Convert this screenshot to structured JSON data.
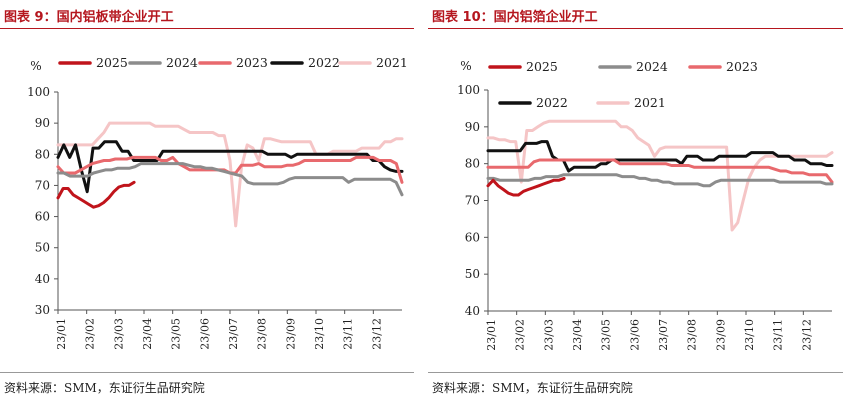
{
  "colors": {
    "title_red": "#b5161e",
    "2025": "#c0141b",
    "2024": "#8c8c8c",
    "2023": "#e8696d",
    "2022": "#111111",
    "2021": "#f5c5c6"
  },
  "panels": [
    {
      "title": "图表 9：国内铝板带企业开工",
      "source": "资料来源：SMM，东证衍生品研究院"
    },
    {
      "title": "图表 10：国内铝箔企业开工",
      "source": "资料来源：SMM，东证衍生品研究院"
    }
  ],
  "chart_data": [
    {
      "type": "line",
      "title": "国内铝板带企业开工",
      "ylabel": "%",
      "ylim": [
        30,
        100
      ],
      "yticks": [
        30,
        40,
        50,
        60,
        70,
        80,
        90,
        100
      ],
      "xlim": [
        0,
        52
      ],
      "x_ticks": [
        "23/01",
        "23/02",
        "23/03",
        "23/04",
        "23/05",
        "23/06",
        "23/07",
        "23/08",
        "23/09",
        "23/10",
        "23/11",
        "23/12"
      ],
      "legend": "top, single row",
      "series": [
        {
          "name": "2025",
          "color": "#c0141b",
          "values": [
            66,
            69,
            69,
            67,
            66,
            65,
            64,
            63,
            63.5,
            64.5,
            66,
            68,
            69.5,
            70,
            70,
            71
          ]
        },
        {
          "name": "2024",
          "color": "#8c8c8c",
          "values": [
            74,
            74,
            73,
            73,
            73,
            73,
            74,
            74.5,
            75,
            75,
            75.5,
            75.5,
            75.5,
            76,
            77,
            77,
            77,
            77,
            77,
            77,
            77,
            77,
            76.5,
            76,
            76,
            75.5,
            75.5,
            75,
            74.5,
            74,
            73.5,
            73,
            71,
            70.5,
            70.5,
            70.5,
            70.5,
            70.5,
            71,
            72,
            72.5,
            72.5,
            72.5,
            72.5,
            72.5,
            72.5,
            72.5,
            72.5,
            72.5,
            71,
            72,
            72,
            72,
            72,
            72,
            72,
            72,
            71,
            67
          ]
        },
        {
          "name": "2023",
          "color": "#e8696d",
          "values": [
            76,
            74,
            74,
            74,
            75,
            76,
            77,
            77.5,
            78,
            78,
            78.5,
            78.5,
            78.5,
            79,
            79,
            79,
            79,
            79,
            78,
            78,
            79,
            77,
            76,
            75,
            75,
            75,
            75,
            75,
            75,
            75,
            74,
            74,
            76.5,
            76.5,
            76.5,
            77,
            76,
            76,
            76,
            76,
            76.5,
            76.5,
            77,
            78,
            78,
            78,
            78,
            78,
            78,
            78,
            78,
            78,
            79,
            79,
            79,
            79,
            78,
            78,
            78,
            77,
            71
          ]
        },
        {
          "name": "2022",
          "color": "#111111",
          "values": [
            79,
            83,
            79,
            83,
            75,
            68,
            82,
            82,
            84,
            84,
            84,
            81,
            81,
            78,
            78,
            78,
            78,
            78,
            81,
            81,
            81,
            81,
            81,
            81,
            81,
            81,
            81,
            81,
            81,
            81,
            81,
            81,
            81,
            81,
            81,
            81,
            80,
            80,
            80,
            80,
            79,
            80,
            80,
            80,
            80,
            80,
            80,
            80,
            80,
            80,
            80,
            80,
            80,
            80,
            78,
            78,
            76,
            75,
            74.5,
            74.5
          ]
        },
        {
          "name": "2021",
          "color": "#f5c5c6",
          "values": [
            83,
            83,
            83,
            83,
            83,
            83,
            83,
            85,
            87,
            90,
            90,
            90,
            90,
            90,
            90,
            90,
            90,
            89,
            89,
            89,
            89,
            89,
            88,
            87,
            87,
            87,
            87,
            87,
            86,
            86,
            78,
            57,
            76,
            83,
            82,
            78,
            85,
            85,
            84.5,
            84,
            84,
            84,
            84,
            84,
            84,
            80,
            80,
            80,
            81,
            81,
            81,
            81,
            81,
            82,
            82,
            82,
            82,
            84,
            84,
            85,
            85
          ]
        }
      ]
    },
    {
      "type": "line",
      "title": "国内铝箔企业开工",
      "ylabel": "%",
      "ylim": [
        40,
        100
      ],
      "yticks": [
        40,
        50,
        60,
        70,
        80,
        90,
        100
      ],
      "xlim": [
        0,
        52
      ],
      "x_ticks": [
        "23/01",
        "23/02",
        "23/03",
        "23/04",
        "23/05",
        "23/06",
        "23/07",
        "23/08",
        "23/09",
        "23/10",
        "23/11",
        "23/12"
      ],
      "legend": "top, two rows",
      "series": [
        {
          "name": "2025",
          "color": "#c0141b",
          "values": [
            74,
            75.5,
            74,
            73,
            72,
            71.5,
            71.5,
            72.5,
            73,
            73.5,
            74,
            74.5,
            75,
            75.5,
            75.5,
            76
          ]
        },
        {
          "name": "2024",
          "color": "#8c8c8c",
          "values": [
            76,
            76,
            75.5,
            75.5,
            75.5,
            75.5,
            75.5,
            75.5,
            76,
            76,
            76.5,
            76.5,
            76.5,
            77,
            77,
            77,
            77,
            77,
            77,
            77,
            77,
            77,
            77,
            76.5,
            76.5,
            76.5,
            76,
            76,
            75.5,
            75.5,
            75,
            75,
            74.5,
            74.5,
            74.5,
            74.5,
            74.5,
            74,
            74,
            75,
            75.5,
            75.5,
            75.5,
            75.5,
            75.5,
            75.5,
            75.5,
            75.5,
            75.5,
            75.5,
            75,
            75,
            75,
            75,
            75,
            75,
            75,
            75,
            74.5,
            74.5
          ]
        },
        {
          "name": "2023",
          "color": "#e8696d",
          "values": [
            79,
            79,
            79,
            79,
            79,
            79,
            79,
            79,
            80.5,
            81,
            81,
            81,
            81,
            81,
            81,
            81,
            81,
            81,
            81,
            81,
            81,
            81,
            81,
            80,
            80,
            80,
            80,
            80,
            80,
            80,
            80,
            80,
            79.5,
            79.5,
            79.5,
            79.5,
            79,
            79,
            79,
            79,
            79,
            79,
            79,
            79,
            79,
            79,
            79,
            79,
            79,
            79,
            78.5,
            78,
            78,
            77.5,
            77.5,
            77.5,
            77,
            77,
            77,
            77,
            75
          ]
        },
        {
          "name": "2022",
          "color": "#111111",
          "values": [
            83.5,
            83.5,
            83.5,
            83.5,
            83.5,
            83.5,
            83.5,
            85.5,
            85.5,
            85.5,
            86,
            86,
            82,
            81,
            81,
            78,
            79,
            79,
            79,
            79,
            79,
            80,
            80,
            81,
            81,
            81,
            81,
            81,
            81,
            81,
            81,
            81,
            81,
            81,
            81,
            81,
            80,
            82,
            82,
            82,
            81,
            81,
            81,
            82,
            82,
            82,
            82,
            82,
            82,
            83,
            83,
            83,
            83,
            83,
            82,
            82,
            82,
            81,
            81,
            81,
            80,
            80,
            80,
            79.5,
            79.5
          ]
        },
        {
          "name": "2021",
          "color": "#f5c5c6",
          "values": [
            87,
            87,
            86.5,
            86.5,
            86,
            86,
            75,
            89,
            89,
            90,
            91,
            91.5,
            91.5,
            91.5,
            91.5,
            91.5,
            91.5,
            91.5,
            91.5,
            91.5,
            91.5,
            91.5,
            91.5,
            91.5,
            90,
            90,
            89,
            87,
            86,
            85,
            82,
            84,
            84.5,
            84.5,
            84.5,
            84.5,
            84.5,
            84.5,
            84.5,
            84.5,
            84.5,
            84.5,
            84.5,
            84.5,
            62,
            64,
            70,
            76,
            79,
            81,
            82,
            82,
            82,
            82,
            82,
            82,
            82,
            82,
            82,
            82,
            82,
            82,
            83
          ]
        }
      ]
    }
  ]
}
